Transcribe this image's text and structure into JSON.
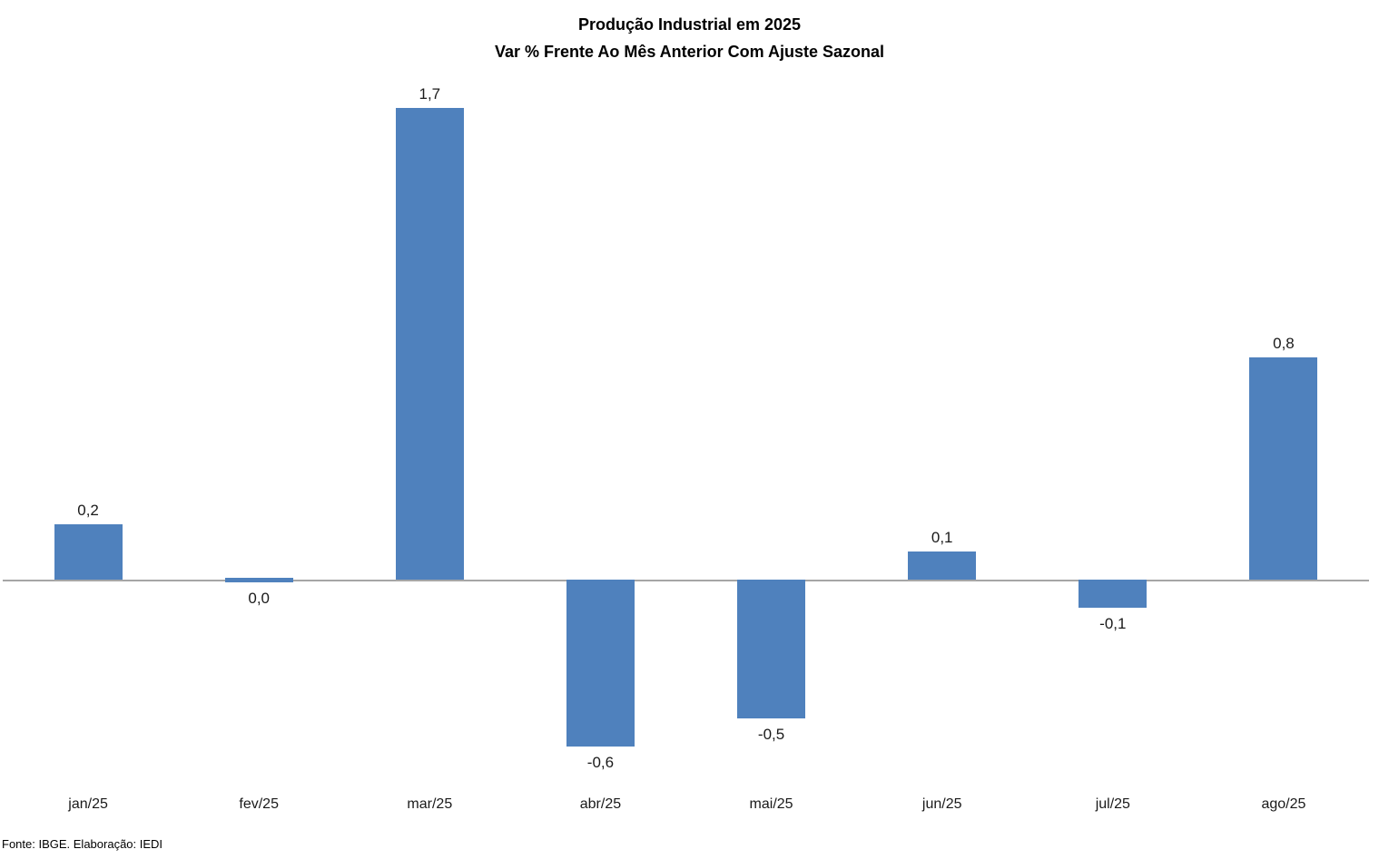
{
  "footer": "Fonte: IBGE. Elaboração: IEDI",
  "colors": {
    "bar": "#4F81BD",
    "axis_line": "#A6A6A6",
    "text": "#1a1a1a"
  },
  "chart_data": {
    "type": "bar",
    "title": "Produção Industrial em 2025",
    "subtitle": "Var % Frente Ao Mês Anterior Com Ajuste Sazonal",
    "categories": [
      "jan/25",
      "fev/25",
      "mar/25",
      "abr/25",
      "mai/25",
      "jun/25",
      "jul/25",
      "ago/25"
    ],
    "values": [
      0.2,
      0.0,
      1.7,
      -0.6,
      -0.5,
      0.1,
      -0.1,
      0.8
    ],
    "data_labels": [
      "0,2",
      "0,0",
      "1,7",
      "-0,6",
      "-0,5",
      "0,1",
      "-0,1",
      "0,8"
    ],
    "xlabel": "",
    "ylabel": "",
    "ylim": [
      -0.8,
      1.8
    ],
    "grid": false,
    "legend": false,
    "y_axis_visible": false,
    "data_label_position": "outside-end"
  }
}
